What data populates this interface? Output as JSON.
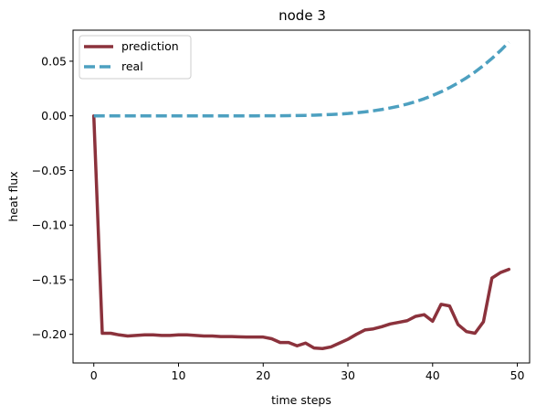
{
  "chart_data": {
    "type": "line",
    "title": "node 3",
    "xlabel": "time steps",
    "ylabel": "heat flux",
    "xlim": [
      -2.45,
      51.45
    ],
    "ylim": [
      -0.2262,
      0.0784
    ],
    "xticks": [
      0,
      10,
      20,
      30,
      40,
      50
    ],
    "yticks": [
      -0.2,
      -0.15,
      -0.1,
      -0.05,
      0.0,
      0.05
    ],
    "xtick_labels": [
      "0",
      "10",
      "20",
      "30",
      "40",
      "50"
    ],
    "ytick_labels": [
      "−0.20",
      "−0.15",
      "−0.10",
      "−0.05",
      "0.00",
      "0.05"
    ],
    "grid": false,
    "legend_position": "top-left",
    "series": [
      {
        "name": "prediction",
        "color": "#8b323c",
        "style": "solid",
        "x": [
          0,
          1,
          2,
          3,
          4,
          5,
          6,
          7,
          8,
          9,
          10,
          11,
          12,
          13,
          14,
          15,
          16,
          17,
          18,
          19,
          20,
          21,
          22,
          23,
          24,
          25,
          26,
          27,
          28,
          29,
          30,
          31,
          32,
          33,
          34,
          35,
          36,
          37,
          38,
          39,
          40,
          41,
          42,
          43,
          44,
          45,
          46,
          47,
          48,
          49
        ],
        "y": [
          0.0,
          -0.199,
          -0.199,
          -0.2005,
          -0.2015,
          -0.201,
          -0.2005,
          -0.2005,
          -0.201,
          -0.201,
          -0.2005,
          -0.2005,
          -0.201,
          -0.2015,
          -0.2015,
          -0.202,
          -0.202,
          -0.2022,
          -0.2025,
          -0.2025,
          -0.2025,
          -0.204,
          -0.2075,
          -0.2075,
          -0.2105,
          -0.208,
          -0.2125,
          -0.213,
          -0.2115,
          -0.208,
          -0.2045,
          -0.2,
          -0.196,
          -0.195,
          -0.193,
          -0.1905,
          -0.189,
          -0.1875,
          -0.1835,
          -0.182,
          -0.188,
          -0.1725,
          -0.174,
          -0.191,
          -0.1975,
          -0.199,
          -0.1885,
          -0.1485,
          -0.1435,
          -0.1405
        ]
      },
      {
        "name": "real",
        "color": "#4da0c0",
        "style": "dashed",
        "x": [
          0,
          1,
          2,
          3,
          4,
          5,
          6,
          7,
          8,
          9,
          10,
          11,
          12,
          13,
          14,
          15,
          16,
          17,
          18,
          19,
          20,
          21,
          22,
          23,
          24,
          25,
          26,
          27,
          28,
          29,
          30,
          31,
          32,
          33,
          34,
          35,
          36,
          37,
          38,
          39,
          40,
          41,
          42,
          43,
          44,
          45,
          46,
          47,
          48,
          49
        ],
        "y": [
          0.0,
          0.0,
          0.0,
          0.0,
          0.0,
          0.0,
          0.0,
          0.0,
          0.0,
          0.0,
          0.0,
          0.0,
          0.0,
          0.0,
          0.0,
          0.0,
          0.0,
          0.0,
          0.0,
          0.0,
          2e-05,
          5e-05,
          0.0001,
          0.0002,
          0.0003,
          0.0004,
          0.0006,
          0.0009,
          0.0012,
          0.0016,
          0.0021,
          0.0028,
          0.0036,
          0.0046,
          0.0058,
          0.0072,
          0.0088,
          0.0108,
          0.013,
          0.0156,
          0.0186,
          0.022,
          0.0258,
          0.0301,
          0.0348,
          0.0401,
          0.046,
          0.0525,
          0.0596,
          0.0674
        ]
      }
    ]
  }
}
